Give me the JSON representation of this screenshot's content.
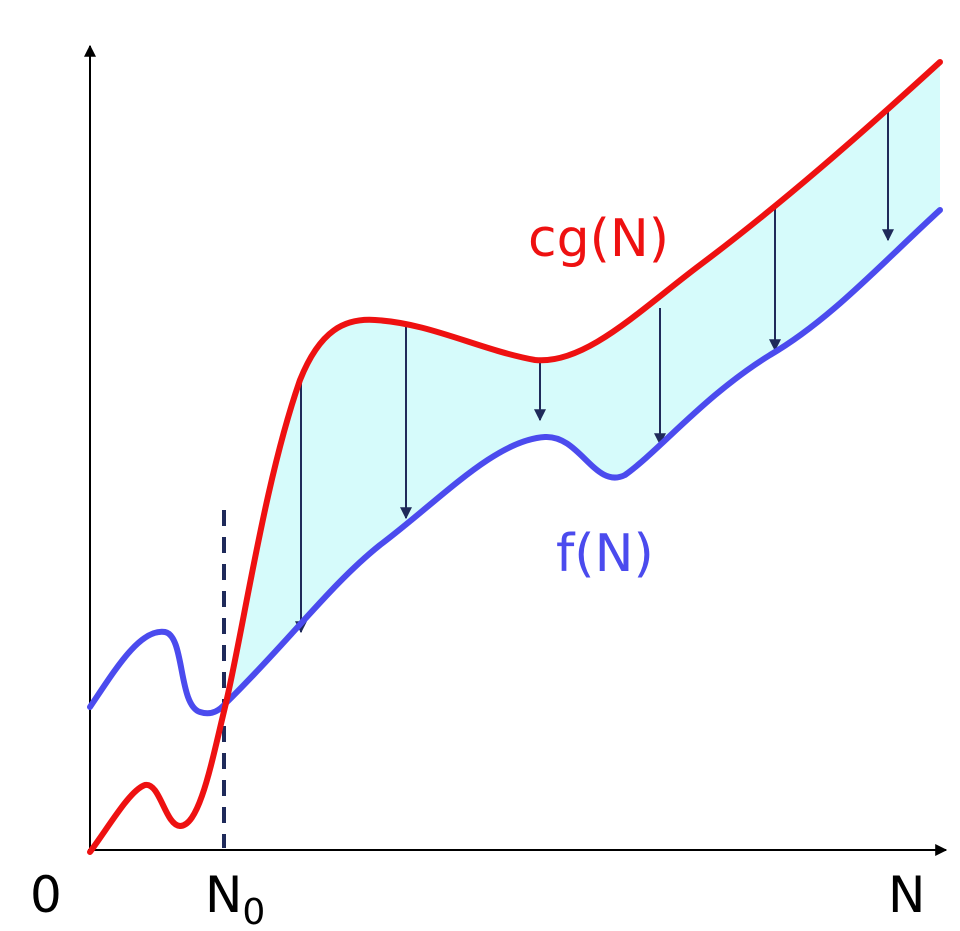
{
  "labels": {
    "origin": "0",
    "n0_main": "N",
    "n0_sub": "0",
    "x_end": "N",
    "upper_curve": "cg(N)",
    "lower_curve": "f(N)"
  },
  "colors": {
    "upper_curve": "#ee1111",
    "lower_curve": "#4b4bee",
    "fill": "#d6fbfb",
    "arrow": "#1f2a5a",
    "axis": "#000000",
    "dashed_line": "#1f2a5a"
  }
}
